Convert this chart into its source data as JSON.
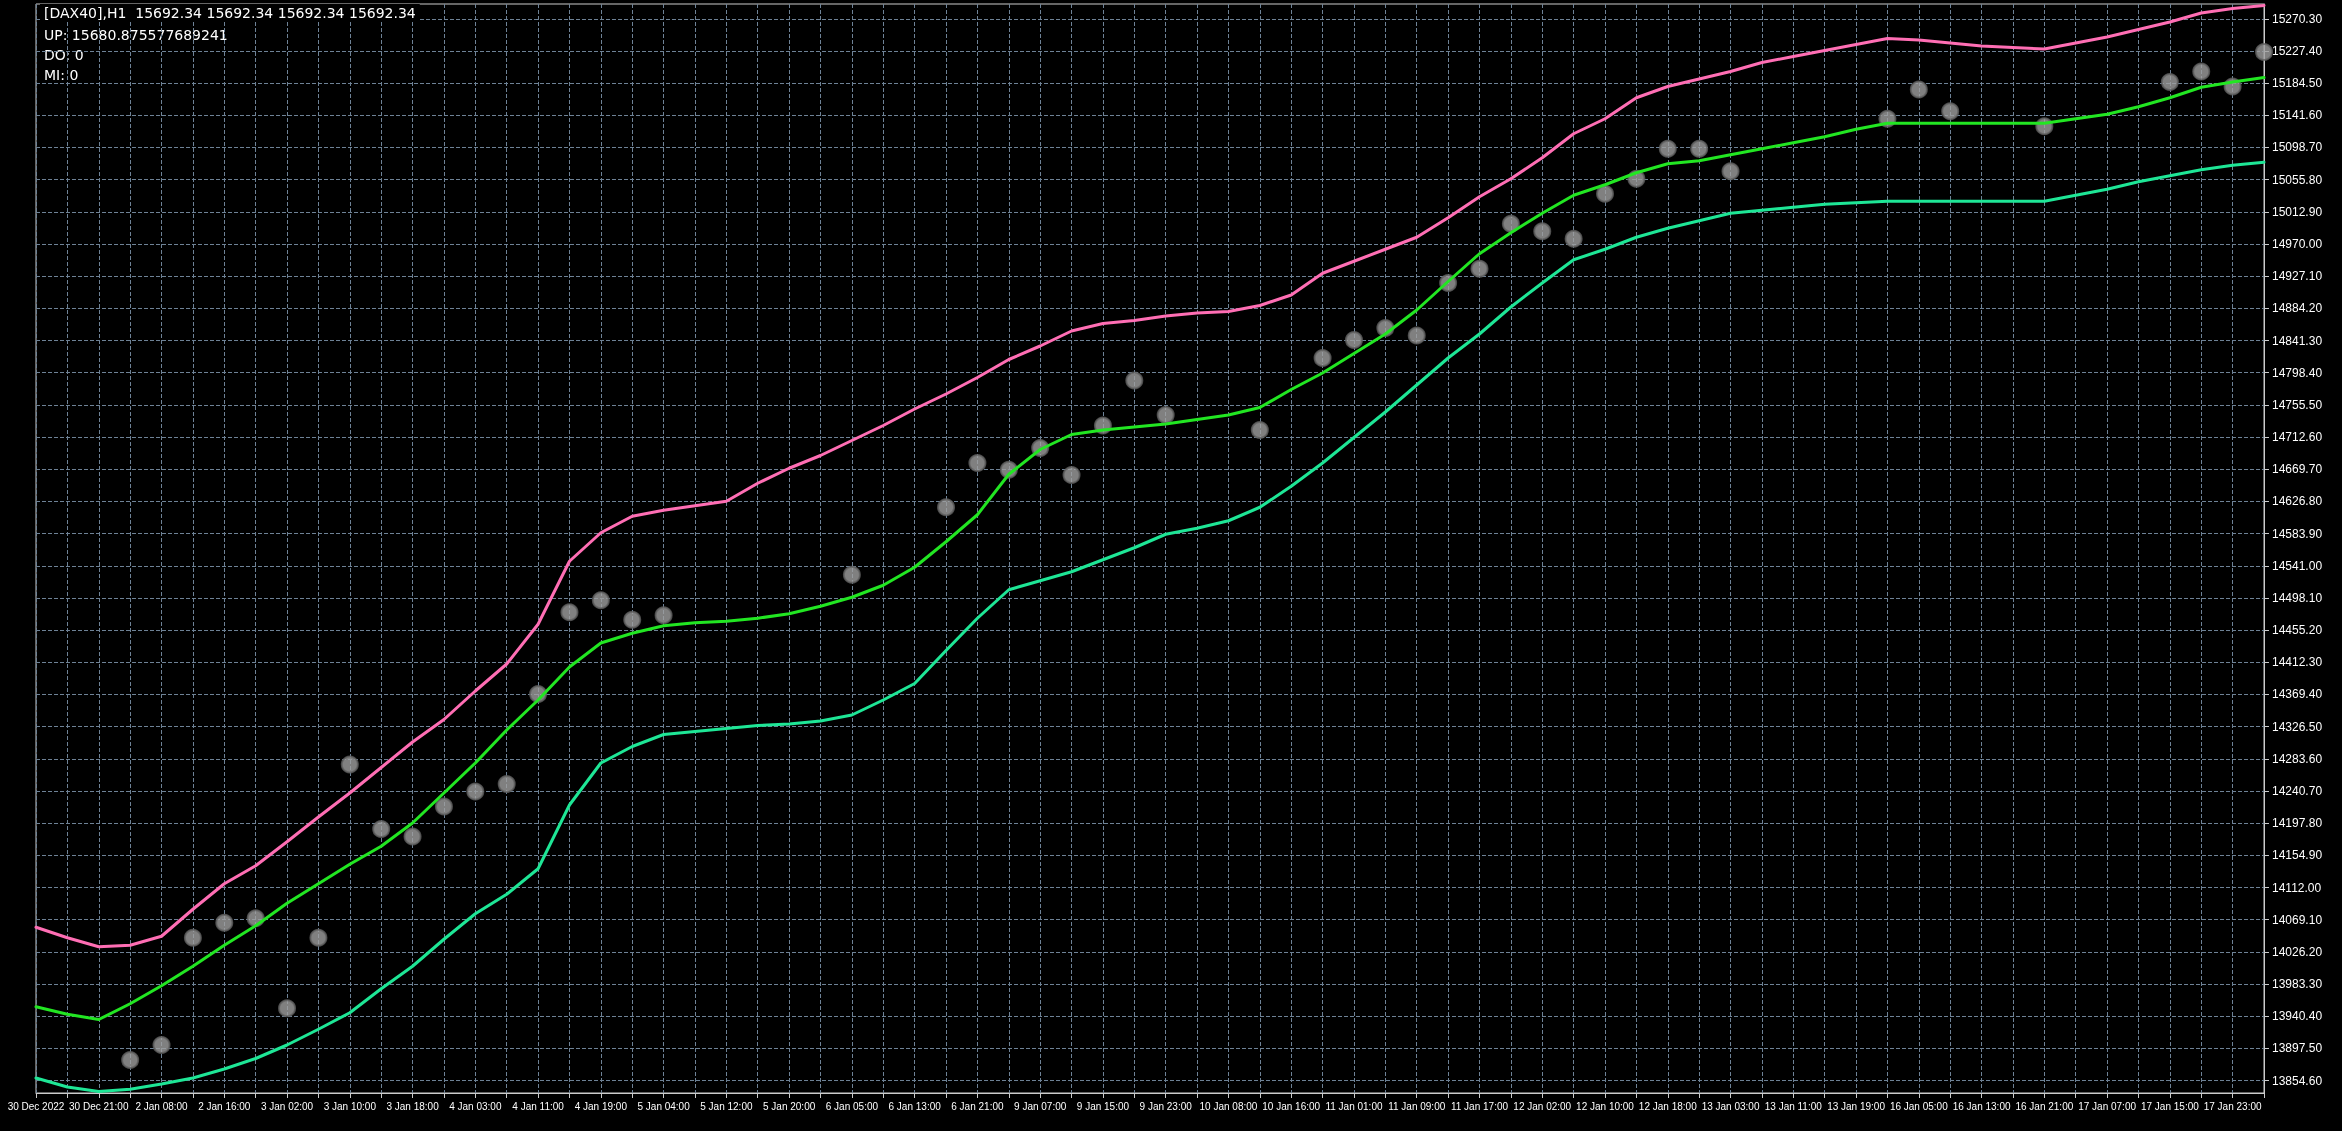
{
  "chart_data": {
    "type": "line",
    "title": "[DAX40],H1  15692.34 15692.34 15692.34 15692.34",
    "annotations": [
      "UP: 15680.875577689241",
      "DO: 0",
      "MI: 0"
    ],
    "categories": [
      "30 Dec 2022",
      null,
      "30 Dec 21:00",
      null,
      "2 Jan 08:00",
      null,
      "2 Jan 16:00",
      null,
      "3 Jan 02:00",
      null,
      "3 Jan 10:00",
      null,
      "3 Jan 18:00",
      null,
      "4 Jan 03:00",
      null,
      "4 Jan 11:00",
      null,
      "4 Jan 19:00",
      null,
      "5 Jan 04:00",
      null,
      "5 Jan 12:00",
      null,
      "5 Jan 20:00",
      null,
      "6 Jan 05:00",
      null,
      "6 Jan 13:00",
      null,
      "6 Jan 21:00",
      null,
      "9 Jan 07:00",
      null,
      "9 Jan 15:00",
      null,
      "9 Jan 23:00",
      null,
      "10 Jan 08:00",
      null,
      "10 Jan 16:00",
      null,
      "11 Jan 01:00",
      null,
      "11 Jan 09:00",
      null,
      "11 Jan 17:00",
      null,
      "12 Jan 02:00",
      null,
      "12 Jan 10:00",
      null,
      "12 Jan 18:00",
      null,
      "13 Jan 03:00",
      null,
      "13 Jan 11:00",
      null,
      "13 Jan 19:00",
      null,
      "16 Jan 05:00",
      null,
      "16 Jan 13:00",
      null,
      "16 Jan 21:00",
      null,
      "17 Jan 07:00",
      null,
      "17 Jan 15:00",
      null,
      "17 Jan 23:00",
      null
    ],
    "series": [
      {
        "color": "#ff6eb4",
        "values": [
          14059,
          14045,
          14033,
          14035,
          14047,
          14083,
          14117,
          14141,
          14173,
          14206,
          14238,
          14272,
          14306,
          14336,
          14374,
          14410,
          14463,
          14547,
          14585,
          14607,
          14615,
          14621,
          14627,
          14651,
          14671,
          14688,
          14708,
          14728,
          14750,
          14770,
          14792,
          14816,
          14834,
          14854,
          14864,
          14868,
          14874,
          14878,
          14880,
          14888,
          14902,
          14931,
          14947,
          14963,
          14979,
          15005,
          15033,
          15057,
          15085,
          15117,
          15137,
          15165,
          15180,
          15190,
          15200,
          15212,
          15220,
          15228,
          15236,
          15244,
          15242,
          15238,
          15234,
          15232,
          15230,
          15238,
          15246,
          15256,
          15266,
          15278,
          15284,
          15288
        ]
      },
      {
        "color": "#22e622",
        "values": [
          13953,
          13943,
          13936,
          13957,
          13981,
          14007,
          14035,
          14061,
          14091,
          14117,
          14143,
          14167,
          14198,
          14238,
          14278,
          14322,
          14362,
          14406,
          14438,
          14451,
          14461,
          14465,
          14467,
          14471,
          14477,
          14487,
          14499,
          14515,
          14539,
          14573,
          14609,
          14663,
          14696,
          14716,
          14722,
          14726,
          14730,
          14736,
          14742,
          14752,
          14776,
          14798,
          14824,
          14850,
          14882,
          14920,
          14957,
          14985,
          15011,
          15035,
          15049,
          15065,
          15077,
          15081,
          15089,
          15097,
          15105,
          15113,
          15123,
          15131,
          15131,
          15131,
          15131,
          15131,
          15131,
          15137,
          15143,
          15153,
          15165,
          15179,
          15186,
          15192
        ]
      },
      {
        "color": "#1ee696",
        "values": [
          13858,
          13846,
          13840,
          13843,
          13850,
          13858,
          13870,
          13884,
          13902,
          13923,
          13945,
          13977,
          14007,
          14043,
          14077,
          14103,
          14137,
          14222,
          14278,
          14300,
          14316,
          14320,
          14324,
          14328,
          14330,
          14334,
          14342,
          14362,
          14384,
          14428,
          14471,
          14509,
          14521,
          14533,
          14549,
          14565,
          14583,
          14591,
          14601,
          14619,
          14647,
          14678,
          14712,
          14746,
          14782,
          14818,
          14850,
          14886,
          14918,
          14949,
          14963,
          14979,
          14991,
          15001,
          15011,
          15015,
          15019,
          15023,
          15025,
          15027,
          15027,
          15027,
          15027,
          15027,
          15027,
          15035,
          15043,
          15053,
          15061,
          15069,
          15075,
          15079
        ]
      },
      {
        "type": "scatter",
        "marker": "circle",
        "color": "#a0a0a0",
        "values": [
          null,
          null,
          null,
          13882,
          13902,
          14045,
          14065,
          14071,
          13951,
          14045,
          14276,
          14190,
          14180,
          14220,
          14240,
          14250,
          14370,
          14479,
          14495,
          14469,
          14475,
          null,
          null,
          null,
          null,
          null,
          14529,
          null,
          null,
          14619,
          14678,
          14669,
          14698,
          14662,
          14728,
          14788,
          14742,
          null,
          null,
          14722,
          null,
          14818,
          14842,
          14858,
          14848,
          14918,
          14937,
          14997,
          14987,
          14977,
          15037,
          15057,
          15097,
          15097,
          15067,
          null,
          null,
          null,
          null,
          15137,
          15176,
          15147,
          null,
          null,
          15127,
          null,
          null,
          null,
          15186,
          15200,
          15180,
          15226
        ]
      }
    ],
    "marker": "none",
    "line_style": "solid",
    "grid": true,
    "ylim": [
      13838,
      15290
    ],
    "yticks": [
      {
        "value": 13854.6,
        "label": "13854.60"
      },
      {
        "value": 13897.5,
        "label": "13897.50"
      },
      {
        "value": 13940.4,
        "label": "13940.40"
      },
      {
        "value": 13983.3,
        "label": "13983.30"
      },
      {
        "value": 14026.2,
        "label": "14026.20"
      },
      {
        "value": 14069.1,
        "label": "14069.10"
      },
      {
        "value": 14112.0,
        "label": "14112.00"
      },
      {
        "value": 14154.9,
        "label": "14154.90"
      },
      {
        "value": 14197.8,
        "label": "14197.80"
      },
      {
        "value": 14240.7,
        "label": "14240.70"
      },
      {
        "value": 14283.6,
        "label": "14283.60"
      },
      {
        "value": 14326.5,
        "label": "14326.50"
      },
      {
        "value": 14369.4,
        "label": "14369.40"
      },
      {
        "value": 14412.3,
        "label": "14412.30"
      },
      {
        "value": 14455.2,
        "label": "14455.20"
      },
      {
        "value": 14498.1,
        "label": "14498.10"
      },
      {
        "value": 14541.0,
        "label": "14541.00"
      },
      {
        "value": 14583.9,
        "label": "14583.90"
      },
      {
        "value": 14626.8,
        "label": "14626.80"
      },
      {
        "value": 14669.7,
        "label": "14669.70"
      },
      {
        "value": 14712.6,
        "label": "14712.60"
      },
      {
        "value": 14755.5,
        "label": "14755.50"
      },
      {
        "value": 14798.4,
        "label": "14798.40"
      },
      {
        "value": 14841.3,
        "label": "14841.30"
      },
      {
        "value": 14884.2,
        "label": "14884.20"
      },
      {
        "value": 14927.1,
        "label": "14927.10"
      },
      {
        "value": 14970.0,
        "label": "14970.00"
      },
      {
        "value": 15012.9,
        "label": "15012.90"
      },
      {
        "value": 15055.8,
        "label": "15055.80"
      },
      {
        "value": 15098.7,
        "label": "15098.70"
      },
      {
        "value": 15141.6,
        "label": "15141.60"
      },
      {
        "value": 15184.5,
        "label": "15184.50"
      },
      {
        "value": 15227.4,
        "label": "15227.40"
      },
      {
        "value": 15270.3,
        "label": "15270.30"
      }
    ]
  }
}
